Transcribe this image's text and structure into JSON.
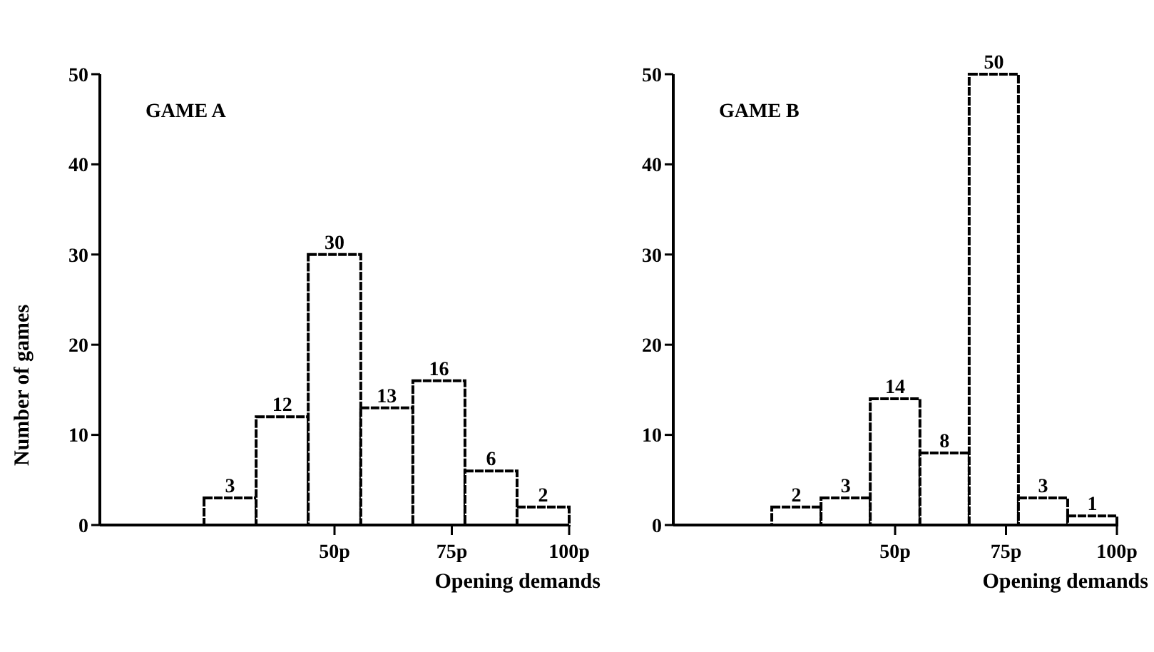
{
  "chart_data": [
    {
      "type": "histogram",
      "title": "GAME A",
      "xlabel": "Opening demands",
      "ylabel": "Number of games",
      "bins": [
        22.2,
        33.3,
        44.4,
        55.6,
        66.7,
        77.8,
        88.9,
        100
      ],
      "values": [
        3,
        12,
        30,
        13,
        16,
        6,
        2
      ],
      "color": "#ffffff",
      "data_labels": true,
      "xlim": [
        0,
        100
      ],
      "xticks": [
        {
          "value": 50,
          "label": "50p"
        },
        {
          "value": 75,
          "label": "75p"
        },
        {
          "value": 100,
          "label": "100p"
        }
      ],
      "ylim": [
        0,
        50
      ],
      "yticks": [
        0,
        10,
        20,
        30,
        40,
        50
      ],
      "grid": false
    },
    {
      "type": "histogram",
      "title": "GAME B",
      "xlabel": "Opening demands",
      "bins": [
        22.2,
        33.3,
        44.4,
        55.6,
        66.7,
        77.8,
        88.9,
        100
      ],
      "values": [
        2,
        3,
        14,
        8,
        50,
        3,
        1
      ],
      "color": "#ffffff",
      "data_labels": true,
      "xlim": [
        0,
        100
      ],
      "xticks": [
        {
          "value": 50,
          "label": "50p"
        },
        {
          "value": 75,
          "label": "75p"
        },
        {
          "value": 100,
          "label": "100p"
        }
      ],
      "ylim": [
        0,
        50
      ],
      "yticks": [
        0,
        10,
        20,
        30,
        40,
        50
      ],
      "grid": false
    }
  ]
}
